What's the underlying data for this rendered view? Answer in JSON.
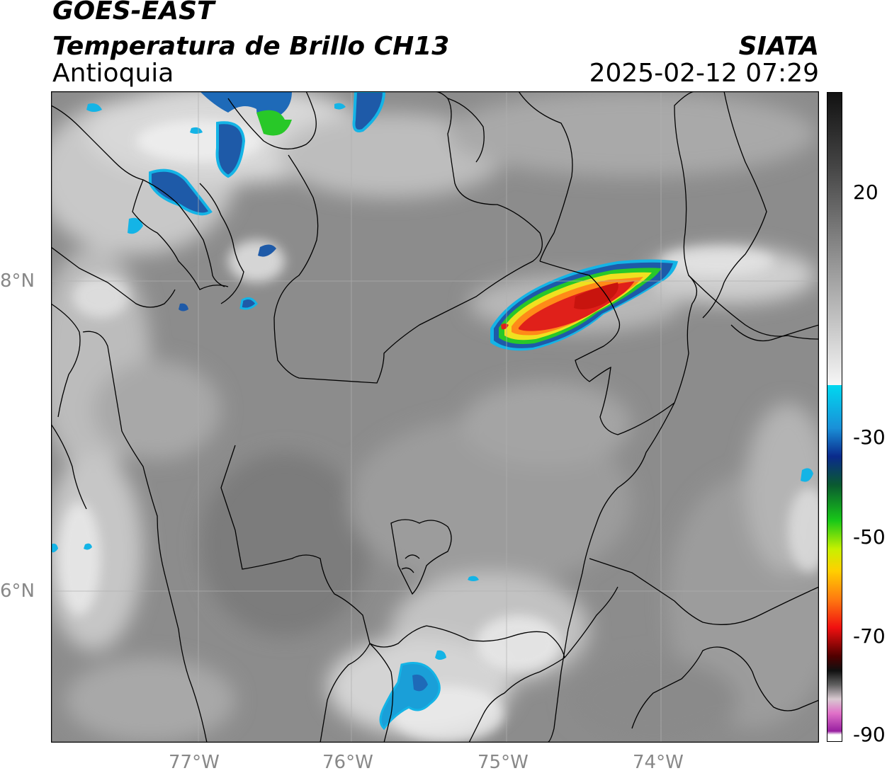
{
  "header": {
    "satellite": "GOES-EAST",
    "product": "Temperatura de Brillo CH13",
    "region": "Antioquia",
    "org": "SIATA",
    "datetime": "2025-02-12 07:29"
  },
  "map": {
    "x_ticks": [
      {
        "label": "77°W",
        "lon": -77
      },
      {
        "label": "76°W",
        "lon": -76
      },
      {
        "label": "75°W",
        "lon": -75
      },
      {
        "label": "74°W",
        "lon": -74
      }
    ],
    "y_ticks": [
      {
        "label": "8°N",
        "lat": 8
      },
      {
        "label": "6°N",
        "lat": 6
      }
    ],
    "lon_range": [
      -77.95,
      -73.0
    ],
    "lat_range": [
      5.0,
      9.2
    ],
    "colors": {
      "background_gray": "#8a8a8a",
      "cold_cloud_blue": "#1e5aa8",
      "deep_convection_red": "#e0201a",
      "green": "#28c828",
      "yellow": "#f0e020"
    }
  },
  "colorbar": {
    "labels": [
      {
        "label": "20",
        "value": 20
      },
      {
        "label": "-30",
        "value": -30
      },
      {
        "label": "-50",
        "value": -50
      },
      {
        "label": "-70",
        "value": -70
      },
      {
        "label": "-90",
        "value": -90
      }
    ]
  }
}
